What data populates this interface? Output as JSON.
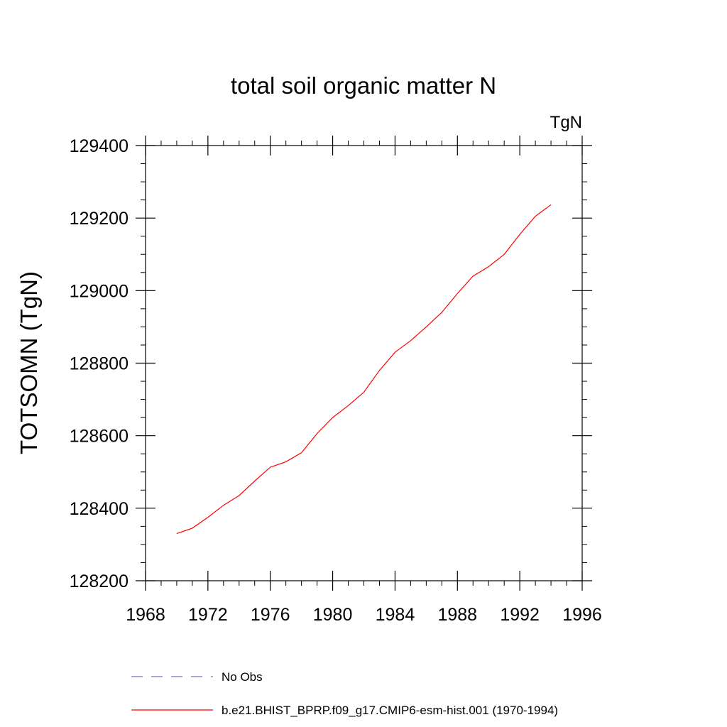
{
  "chart_data": {
    "type": "line",
    "title": "total soil organic matter N",
    "units_label": "TgN",
    "xlabel": "",
    "ylabel": "TOTSOMN  (TgN)",
    "xlim": [
      1968,
      1996
    ],
    "ylim": [
      128200,
      129400
    ],
    "xticks": [
      1968,
      1972,
      1976,
      1980,
      1984,
      1988,
      1992,
      1996
    ],
    "yticks": [
      128200,
      128400,
      128600,
      128800,
      129000,
      129200,
      129400
    ],
    "grid": false,
    "legend_position": "bottom",
    "series": [
      {
        "name": "No Obs",
        "style": "dashed",
        "color": "#7070c0",
        "x": [],
        "y": []
      },
      {
        "name": "b.e21.BHIST_BPRP.f09_g17.CMIP6-esm-hist.001 (1970-1994)",
        "style": "solid",
        "color": "#ff0000",
        "x": [
          1970,
          1971,
          1972,
          1973,
          1974,
          1975,
          1976,
          1977,
          1978,
          1979,
          1980,
          1981,
          1982,
          1983,
          1984,
          1985,
          1986,
          1987,
          1988,
          1989,
          1990,
          1991,
          1992,
          1993,
          1994
        ],
        "y": [
          128330,
          128345,
          128375,
          128408,
          128435,
          128475,
          128513,
          128528,
          128553,
          128606,
          128650,
          128683,
          128720,
          128780,
          128830,
          128862,
          128900,
          128940,
          128992,
          129040,
          129066,
          129100,
          129155,
          129205,
          129237
        ]
      }
    ]
  }
}
